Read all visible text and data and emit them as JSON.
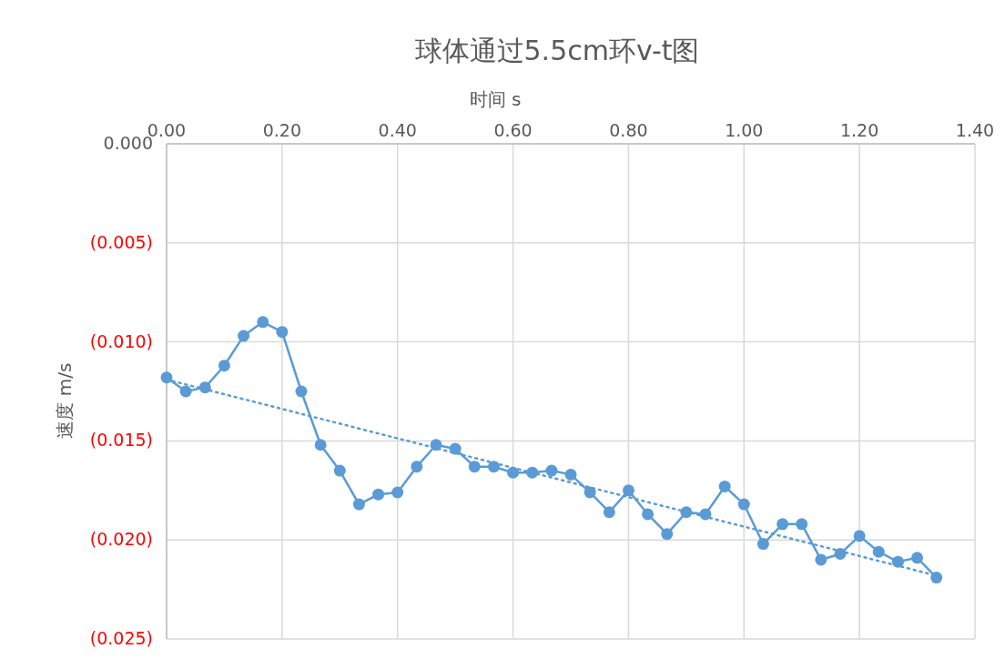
{
  "chart_data": {
    "type": "line",
    "title": "球体通过5.5cm环v-t图",
    "xlabel": "时间 s",
    "ylabel": "速度 m/s",
    "xlim": [
      0,
      1.4
    ],
    "xticks": [
      {
        "value": 0,
        "label": "0.00"
      },
      {
        "value": 0.2,
        "label": "0.20"
      },
      {
        "value": 0.4,
        "label": "0.40"
      },
      {
        "value": 0.6,
        "label": "0.60"
      },
      {
        "value": 0.8,
        "label": "0.80"
      },
      {
        "value": 1,
        "label": "1.00"
      },
      {
        "value": 1.2,
        "label": "1.20"
      },
      {
        "value": 1.4,
        "label": "1.40"
      }
    ],
    "ylim": [
      -0.025,
      0
    ],
    "yticks": [
      {
        "value": 0,
        "label": "0.000"
      },
      {
        "value": -0.005,
        "label": "(0.005)"
      },
      {
        "value": -0.01,
        "label": "(0.010)"
      },
      {
        "value": -0.015,
        "label": "(0.015)"
      },
      {
        "value": -0.02,
        "label": "(0.020)"
      },
      {
        "value": -0.025,
        "label": "(0.025)"
      }
    ],
    "grid": true,
    "series": [
      {
        "color": "#5b9bd5",
        "marker": "circle",
        "line_style": "solid",
        "x": [
          0,
          0.0333,
          0.0667,
          0.1,
          0.1333,
          0.1667,
          0.2,
          0.2333,
          0.2667,
          0.3,
          0.3333,
          0.3667,
          0.4,
          0.4333,
          0.4667,
          0.5,
          0.5333,
          0.5667,
          0.6,
          0.6333,
          0.6667,
          0.7,
          0.7333,
          0.7667,
          0.8,
          0.8333,
          0.8667,
          0.9,
          0.9333,
          0.9667,
          1,
          1.0333,
          1.0667,
          1.1,
          1.1333,
          1.1667,
          1.2,
          1.2333,
          1.2667,
          1.3,
          1.3333
        ],
        "values": [
          -0.0118,
          -0.0125,
          -0.0123,
          -0.0112,
          -0.0097,
          -0.009,
          -0.0095,
          -0.0125,
          -0.0152,
          -0.0165,
          -0.0182,
          -0.0177,
          -0.0176,
          -0.0163,
          -0.0152,
          -0.0154,
          -0.0163,
          -0.0163,
          -0.0166,
          -0.0166,
          -0.0165,
          -0.0167,
          -0.0176,
          -0.0186,
          -0.0175,
          -0.0187,
          -0.0197,
          -0.0186,
          -0.0187,
          -0.0173,
          -0.0182,
          -0.0202,
          -0.0192,
          -0.0192,
          -0.021,
          -0.0207,
          -0.0198,
          -0.0206,
          -0.0211,
          -0.0209,
          -0.0219
        ]
      },
      {
        "type": "line",
        "color": "#5b9bd5",
        "marker": "none",
        "line_style": "dotted",
        "x": [
          0,
          1.3333
        ],
        "values": [
          -0.0119,
          -0.0218
        ]
      }
    ]
  }
}
